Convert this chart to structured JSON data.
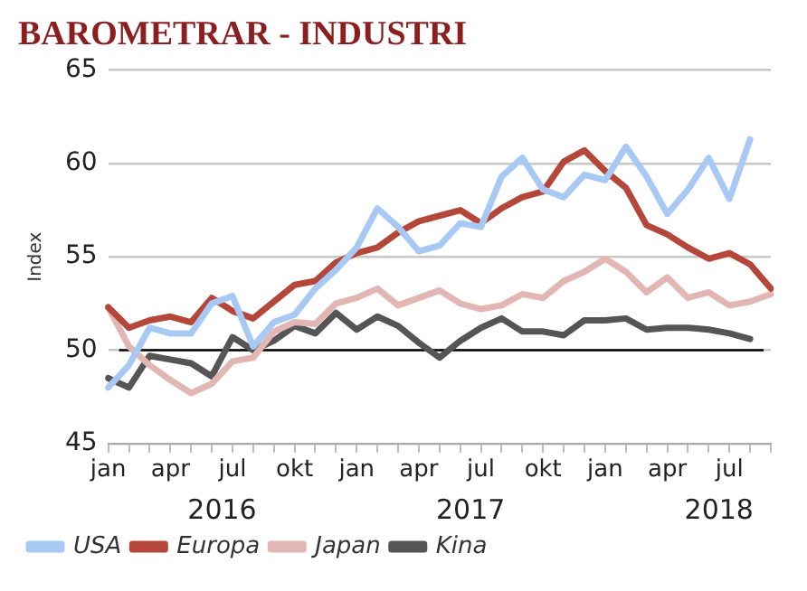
{
  "chart_data": {
    "type": "line",
    "title": "BAROMETRAR - INDUSTRI",
    "ylabel": "Index",
    "categories": [
      "jan",
      null,
      null,
      "apr",
      null,
      null,
      "jul",
      null,
      null,
      "okt",
      null,
      null,
      "jan",
      null,
      null,
      "apr",
      null,
      null,
      "jul",
      null,
      null,
      "okt",
      null,
      null,
      "jan",
      null,
      null,
      "apr",
      null,
      null,
      "jul",
      null,
      null
    ],
    "annotations": [
      "2016",
      "2017",
      "2018"
    ],
    "series": [
      {
        "name": "USA",
        "color": "#a9c9f5",
        "values": [
          48.0,
          49.2,
          51.2,
          50.9,
          50.9,
          52.5,
          52.9,
          50.2,
          51.5,
          51.9,
          53.3,
          54.3,
          55.5,
          57.6,
          56.6,
          55.3,
          55.6,
          56.8,
          56.6,
          59.3,
          60.3,
          58.6,
          58.2,
          59.4,
          59.1,
          60.9,
          59.3,
          57.3,
          58.6,
          60.3,
          58.1,
          61.3,
          null
        ]
      },
      {
        "name": "Europa",
        "color": "#b5473a",
        "values": [
          52.3,
          51.2,
          51.6,
          51.8,
          51.5,
          52.8,
          52.1,
          51.7,
          52.6,
          53.5,
          53.7,
          54.7,
          55.2,
          55.5,
          56.3,
          56.9,
          57.2,
          57.5,
          56.8,
          57.6,
          58.2,
          58.5,
          60.1,
          60.7,
          59.6,
          58.7,
          56.7,
          56.2,
          55.5,
          54.9,
          55.2,
          54.6,
          53.3
        ]
      },
      {
        "name": "Japan",
        "color": "#e2b7b3",
        "values": [
          52.3,
          50.2,
          49.2,
          48.4,
          47.7,
          48.2,
          49.4,
          49.6,
          51.0,
          51.5,
          51.4,
          52.5,
          52.8,
          53.3,
          52.4,
          52.8,
          53.2,
          52.5,
          52.2,
          52.4,
          53.0,
          52.8,
          53.7,
          54.2,
          54.9,
          54.2,
          53.1,
          53.9,
          52.8,
          53.1,
          52.4,
          52.6,
          53.0
        ]
      },
      {
        "name": "Kina",
        "color": "#555555",
        "values": [
          48.5,
          48.0,
          49.7,
          49.5,
          49.3,
          48.6,
          50.7,
          50.0,
          50.5,
          51.3,
          50.9,
          52.0,
          51.1,
          51.8,
          51.3,
          50.4,
          49.6,
          50.5,
          51.2,
          51.7,
          51.0,
          51.0,
          50.8,
          51.6,
          51.6,
          51.7,
          51.1,
          51.2,
          51.2,
          51.1,
          50.9,
          50.6,
          null
        ]
      }
    ],
    "ylim": [
      45,
      65
    ],
    "yticks": [
      45,
      50,
      55,
      60,
      65
    ],
    "grid": "y",
    "legend": "bottom",
    "marker": "none",
    "line_style": "solid",
    "ref_lines": [
      {
        "axis": "y",
        "value": 50,
        "color": "#000000"
      }
    ]
  }
}
